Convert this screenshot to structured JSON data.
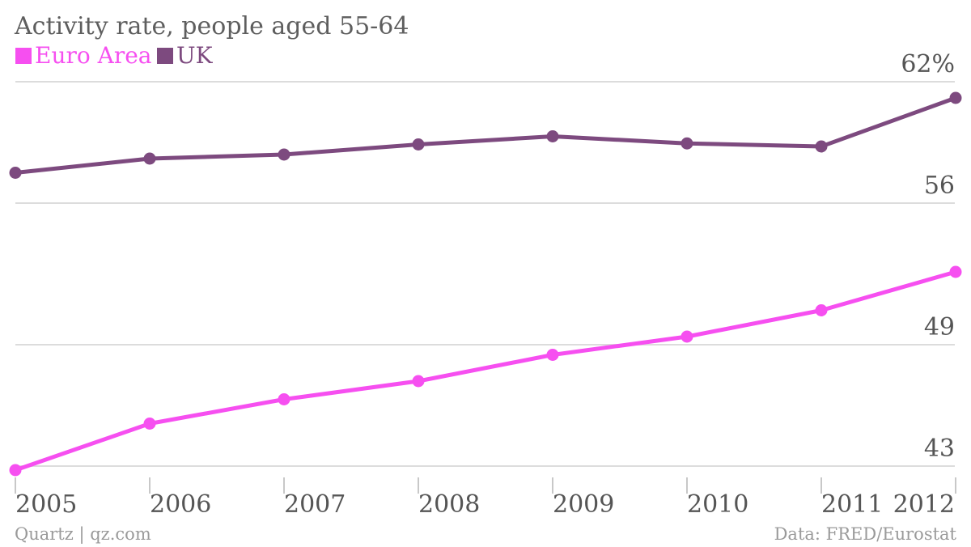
{
  "title": "Activity rate, people aged 55-64",
  "footer": {
    "source_left": "Quartz | qz.com",
    "source_right": "Data: FRED/Eurostat"
  },
  "colors": {
    "euro_area": "#f64ff0",
    "uk": "#7d4a7f",
    "grid": "#dcdcdc",
    "text": "#555555"
  },
  "chart_data": {
    "type": "line",
    "title": "Activity rate, people aged 55-64",
    "xlabel": "",
    "ylabel": "",
    "x": [
      "2005",
      "2006",
      "2007",
      "2008",
      "2009",
      "2010",
      "2011",
      "2012"
    ],
    "ylim": [
      43,
      62
    ],
    "yticks": [
      {
        "value": 62,
        "label": "62%"
      },
      {
        "value": 56,
        "label": "56"
      },
      {
        "value": 49,
        "label": "49"
      },
      {
        "value": 43,
        "label": "43"
      }
    ],
    "grid": true,
    "legend": "top-left",
    "series": [
      {
        "name": "Euro Area",
        "color": "#f64ff0",
        "values": [
          42.8,
          45.1,
          46.3,
          47.2,
          48.5,
          49.4,
          50.7,
          52.6
        ]
      },
      {
        "name": "UK",
        "color": "#7d4a7f",
        "values": [
          57.5,
          58.2,
          58.4,
          58.9,
          59.3,
          58.95,
          58.8,
          61.2
        ]
      }
    ]
  }
}
